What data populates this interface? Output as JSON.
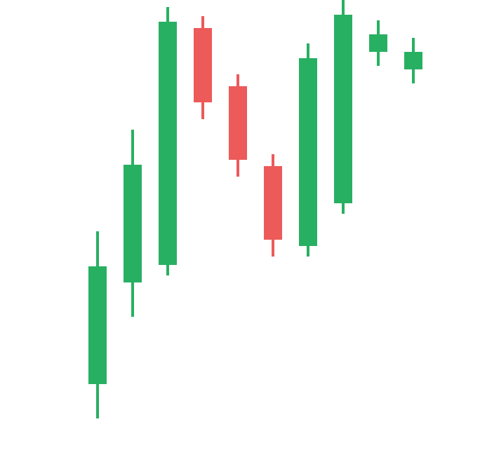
{
  "chart_data": {
    "type": "candlestick",
    "open": [
      114,
      259,
      284,
      622,
      539,
      425,
      311,
      372,
      588,
      563
    ],
    "high": [
      332,
      477,
      652,
      639,
      556,
      442,
      600,
      662,
      633,
      608
    ],
    "low": [
      65,
      210,
      269,
      492,
      410,
      296,
      296,
      357,
      568,
      543
    ],
    "close": [
      282,
      427,
      631,
      516,
      434,
      320,
      579,
      641,
      613,
      588
    ],
    "up_color": "#28b062",
    "down_color": "#ec5a5a",
    "ylim": [
      0,
      662
    ]
  }
}
